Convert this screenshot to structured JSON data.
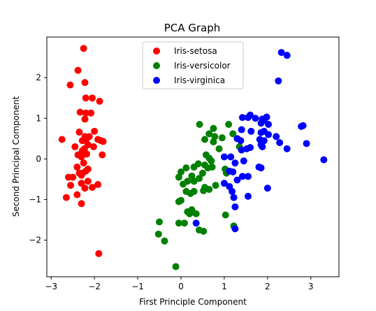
{
  "chart_data": {
    "type": "scatter",
    "title": "PCA Graph",
    "xlabel": "First Principle Component",
    "ylabel": "Second Principal Component",
    "xlim": [
      -3.1,
      3.65
    ],
    "ylim": [
      -2.9,
      3.0
    ],
    "xticks": [
      -3,
      -2,
      -1,
      0,
      1,
      2,
      3
    ],
    "yticks": [
      -2,
      -1,
      0,
      1,
      2
    ],
    "grid": false,
    "legend_position": "upper-center",
    "series": [
      {
        "name": "Iris-setosa",
        "color": "#ff0000",
        "points": [
          [
            -2.25,
            2.72
          ],
          [
            -2.38,
            2.18
          ],
          [
            -2.22,
            1.88
          ],
          [
            -2.56,
            1.82
          ],
          [
            -2.2,
            1.5
          ],
          [
            -2.05,
            1.5
          ],
          [
            -1.88,
            1.42
          ],
          [
            -2.33,
            1.15
          ],
          [
            -2.2,
            1.13
          ],
          [
            -2.08,
            1.13
          ],
          [
            -2.22,
            0.98
          ],
          [
            -2.35,
            0.66
          ],
          [
            -2.0,
            0.68
          ],
          [
            -2.22,
            0.55
          ],
          [
            -2.12,
            0.55
          ],
          [
            -2.2,
            0.45
          ],
          [
            -2.28,
            0.45
          ],
          [
            -1.92,
            0.48
          ],
          [
            -1.85,
            0.45
          ],
          [
            -1.8,
            0.43
          ],
          [
            -2.15,
            0.35
          ],
          [
            -2.02,
            0.3
          ],
          [
            -2.75,
            0.48
          ],
          [
            -2.45,
            0.3
          ],
          [
            -2.23,
            0.25
          ],
          [
            -2.28,
            0.2
          ],
          [
            -2.38,
            0.1
          ],
          [
            -2.3,
            0.05
          ],
          [
            -2.18,
            0.12
          ],
          [
            -1.82,
            0.1
          ],
          [
            -2.25,
            -0.1
          ],
          [
            -2.4,
            -0.2
          ],
          [
            -2.15,
            -0.25
          ],
          [
            -2.35,
            -0.35
          ],
          [
            -2.28,
            -0.35
          ],
          [
            -2.2,
            -0.3
          ],
          [
            -2.3,
            -0.4
          ],
          [
            -2.6,
            -0.45
          ],
          [
            -2.5,
            -0.45
          ],
          [
            -2.15,
            -0.55
          ],
          [
            -2.3,
            -0.6
          ],
          [
            -2.55,
            -0.65
          ],
          [
            -2.22,
            -0.72
          ],
          [
            -2.05,
            -0.7
          ],
          [
            -1.92,
            -0.63
          ],
          [
            -2.4,
            -0.88
          ],
          [
            -2.65,
            -0.95
          ],
          [
            -2.3,
            -1.1
          ],
          [
            -1.9,
            -2.33
          ]
        ]
      },
      {
        "name": "Iris-versicolor",
        "color": "#008000",
        "points": [
          [
            0.43,
            0.85
          ],
          [
            0.75,
            0.75
          ],
          [
            1.1,
            0.85
          ],
          [
            0.65,
            0.62
          ],
          [
            0.55,
            0.48
          ],
          [
            0.78,
            0.55
          ],
          [
            0.95,
            0.52
          ],
          [
            1.2,
            0.62
          ],
          [
            0.75,
            0.42
          ],
          [
            0.88,
            0.25
          ],
          [
            1.35,
            0.3
          ],
          [
            0.58,
            0.1
          ],
          [
            0.65,
            0.02
          ],
          [
            0.7,
            -0.05
          ],
          [
            0.4,
            -0.12
          ],
          [
            0.55,
            -0.15
          ],
          [
            0.62,
            -0.22
          ],
          [
            0.3,
            -0.2
          ],
          [
            0.12,
            -0.22
          ],
          [
            0.0,
            -0.32
          ],
          [
            1.02,
            -0.25
          ],
          [
            0.72,
            -0.2
          ],
          [
            0.5,
            -0.35
          ],
          [
            0.25,
            -0.42
          ],
          [
            0.42,
            -0.48
          ],
          [
            0.15,
            -0.55
          ],
          [
            0.3,
            -0.55
          ],
          [
            -0.05,
            -0.45
          ],
          [
            1.05,
            -0.35
          ],
          [
            0.05,
            -0.62
          ],
          [
            0.12,
            -0.8
          ],
          [
            0.22,
            -0.85
          ],
          [
            0.3,
            -0.8
          ],
          [
            0.55,
            -0.7
          ],
          [
            0.52,
            -0.78
          ],
          [
            0.65,
            -0.75
          ],
          [
            0.8,
            -0.65
          ],
          [
            1.22,
            -0.95
          ],
          [
            -0.05,
            -1.05
          ],
          [
            0.0,
            -1.02
          ],
          [
            0.25,
            -1.25
          ],
          [
            0.15,
            -1.3
          ],
          [
            0.2,
            -1.35
          ],
          [
            0.35,
            -1.35
          ],
          [
            1.03,
            -1.38
          ],
          [
            -0.5,
            -1.55
          ],
          [
            -0.05,
            -1.58
          ],
          [
            0.08,
            -1.58
          ],
          [
            0.42,
            -1.75
          ],
          [
            0.52,
            -1.78
          ],
          [
            1.22,
            -1.65
          ],
          [
            -0.52,
            -1.85
          ],
          [
            -0.38,
            -2.02
          ],
          [
            -0.12,
            -2.65
          ]
        ]
      },
      {
        "name": "Iris-virginica",
        "color": "#0000ff",
        "points": [
          [
            2.32,
            2.62
          ],
          [
            2.45,
            2.55
          ],
          [
            2.25,
            1.92
          ],
          [
            1.6,
            1.08
          ],
          [
            1.55,
            1.02
          ],
          [
            1.72,
            1.0
          ],
          [
            1.88,
            0.98
          ],
          [
            1.98,
            1.03
          ],
          [
            1.92,
            0.95
          ],
          [
            2.02,
            0.85
          ],
          [
            1.85,
            0.88
          ],
          [
            1.42,
            1.02
          ],
          [
            1.4,
            0.72
          ],
          [
            1.62,
            0.68
          ],
          [
            2.02,
            0.6
          ],
          [
            1.85,
            0.65
          ],
          [
            1.92,
            0.68
          ],
          [
            2.2,
            0.55
          ],
          [
            2.78,
            0.8
          ],
          [
            2.82,
            0.82
          ],
          [
            1.3,
            0.5
          ],
          [
            1.38,
            0.45
          ],
          [
            1.82,
            0.48
          ],
          [
            1.92,
            0.45
          ],
          [
            2.28,
            0.4
          ],
          [
            1.6,
            0.28
          ],
          [
            1.52,
            0.25
          ],
          [
            1.85,
            0.35
          ],
          [
            1.88,
            0.3
          ],
          [
            2.45,
            0.25
          ],
          [
            2.9,
            0.38
          ],
          [
            1.4,
            0.22
          ],
          [
            1.0,
            0.05
          ],
          [
            1.15,
            0.05
          ],
          [
            1.25,
            -0.1
          ],
          [
            1.45,
            -0.05
          ],
          [
            1.8,
            -0.2
          ],
          [
            1.85,
            -0.22
          ],
          [
            1.12,
            -0.3
          ],
          [
            1.2,
            -0.32
          ],
          [
            1.42,
            -0.43
          ],
          [
            1.55,
            -0.43
          ],
          [
            1.3,
            -0.52
          ],
          [
            1.0,
            -0.6
          ],
          [
            1.12,
            -0.68
          ],
          [
            1.18,
            -0.8
          ],
          [
            2.0,
            -0.72
          ],
          [
            1.55,
            -0.92
          ],
          [
            1.22,
            -0.95
          ],
          [
            1.25,
            -1.18
          ],
          [
            0.35,
            -1.58
          ],
          [
            1.25,
            -1.72
          ],
          [
            3.3,
            -0.02
          ]
        ]
      }
    ]
  }
}
